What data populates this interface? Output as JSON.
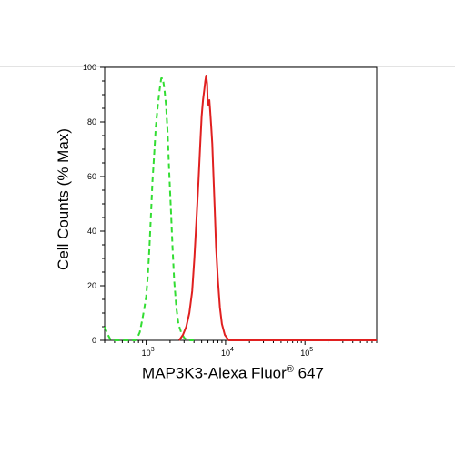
{
  "chart_data": {
    "type": "histogram",
    "xlabel_main": "MAP3K3-Alexa Fluor",
    "xlabel_sup": "®",
    "xlabel_tail": " 647",
    "ylabel": "Cell Counts (% Max)",
    "x_scale": "log",
    "xlim": [
      300,
      800000
    ],
    "ylim": [
      0,
      100
    ],
    "y_ticks": [
      "0",
      "20",
      "40",
      "60",
      "80",
      "100"
    ],
    "x_ticks": [
      {
        "base": "10",
        "exp": "3",
        "value": 1000
      },
      {
        "base": "10",
        "exp": "4",
        "value": 10000
      },
      {
        "base": "10",
        "exp": "5",
        "value": 100000
      }
    ],
    "series": [
      {
        "style": "dashed",
        "color": "#33dd33",
        "points": [
          [
            300,
            5
          ],
          [
            330,
            2
          ],
          [
            360,
            0
          ],
          [
            600,
            0
          ],
          [
            750,
            0
          ],
          [
            830,
            3
          ],
          [
            900,
            8
          ],
          [
            950,
            12
          ],
          [
            1000,
            16
          ],
          [
            1050,
            24
          ],
          [
            1100,
            34
          ],
          [
            1150,
            46
          ],
          [
            1200,
            58
          ],
          [
            1260,
            68
          ],
          [
            1320,
            78
          ],
          [
            1400,
            86
          ],
          [
            1480,
            92
          ],
          [
            1550,
            96
          ],
          [
            1620,
            96
          ],
          [
            1700,
            92
          ],
          [
            1780,
            86
          ],
          [
            1860,
            76
          ],
          [
            1950,
            62
          ],
          [
            2050,
            48
          ],
          [
            2150,
            34
          ],
          [
            2250,
            22
          ],
          [
            2400,
            12
          ],
          [
            2550,
            6
          ],
          [
            2750,
            3
          ],
          [
            3000,
            1
          ],
          [
            3300,
            0
          ],
          [
            4000,
            0
          ]
        ]
      },
      {
        "style": "solid",
        "color": "#e02020",
        "points": [
          [
            2600,
            0
          ],
          [
            2900,
            2
          ],
          [
            3200,
            5
          ],
          [
            3500,
            10
          ],
          [
            3800,
            18
          ],
          [
            4050,
            30
          ],
          [
            4300,
            44
          ],
          [
            4550,
            58
          ],
          [
            4800,
            72
          ],
          [
            5000,
            82
          ],
          [
            5200,
            88
          ],
          [
            5400,
            92
          ],
          [
            5550,
            95
          ],
          [
            5700,
            97
          ],
          [
            5850,
            94
          ],
          [
            5950,
            88
          ],
          [
            6100,
            86
          ],
          [
            6250,
            88
          ],
          [
            6400,
            84
          ],
          [
            6600,
            78
          ],
          [
            6800,
            72
          ],
          [
            7000,
            62
          ],
          [
            7300,
            48
          ],
          [
            7600,
            34
          ],
          [
            8000,
            22
          ],
          [
            8500,
            12
          ],
          [
            9000,
            6
          ],
          [
            9800,
            2
          ],
          [
            11000,
            0
          ],
          [
            800000,
            0
          ]
        ]
      }
    ]
  }
}
